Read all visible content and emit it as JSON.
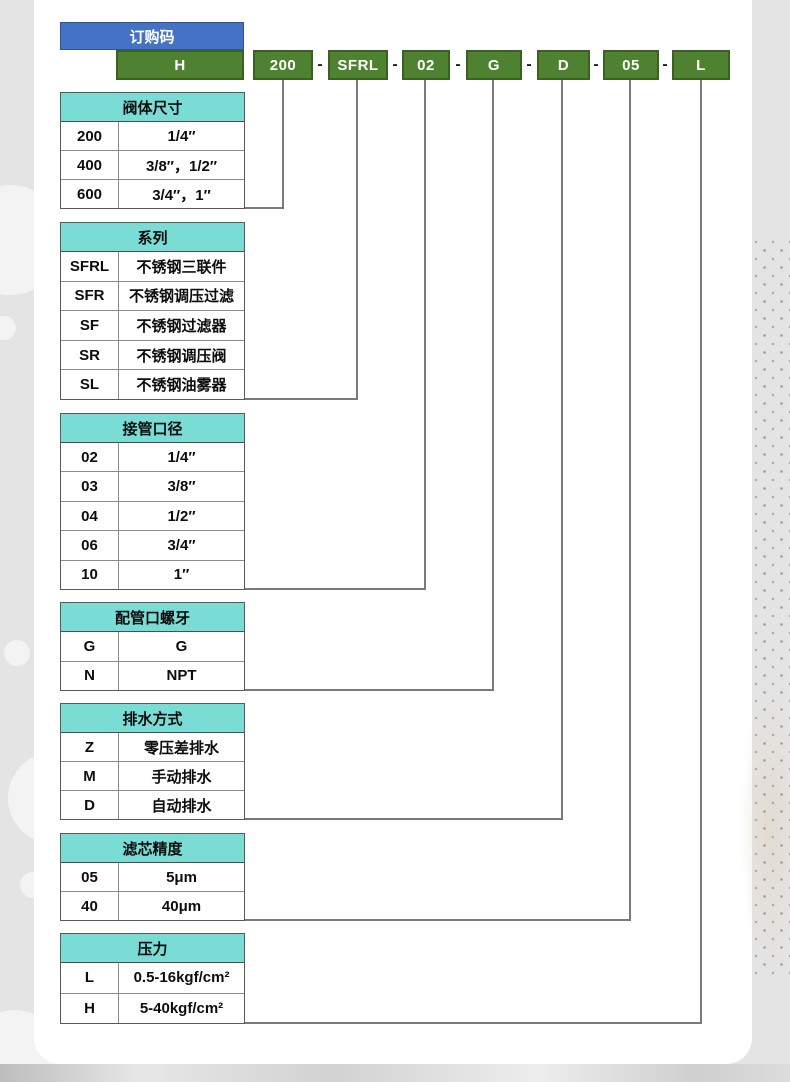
{
  "title_box": {
    "label": "订购码"
  },
  "code": {
    "prefix": "H",
    "separator": "-",
    "segments": [
      {
        "code": "200"
      },
      {
        "code": "SFRL"
      },
      {
        "code": "02"
      },
      {
        "code": "G"
      },
      {
        "code": "D"
      },
      {
        "code": "05"
      },
      {
        "code": "L"
      }
    ]
  },
  "tables": [
    {
      "title": "阀体尺寸",
      "rows": [
        [
          "200",
          "1/4″"
        ],
        [
          "400",
          "3/8″，1/2″"
        ],
        [
          "600",
          "3/4″，1″"
        ]
      ]
    },
    {
      "title": "系列",
      "rows": [
        [
          "SFRL",
          "不锈钢三联件"
        ],
        [
          "SFR",
          "不锈钢调压过滤"
        ],
        [
          "SF",
          "不锈钢过滤器"
        ],
        [
          "SR",
          "不锈钢调压阀"
        ],
        [
          "SL",
          "不锈钢油雾器"
        ]
      ]
    },
    {
      "title": "接管口径",
      "rows": [
        [
          "02",
          "1/4″"
        ],
        [
          "03",
          "3/8″"
        ],
        [
          "04",
          "1/2″"
        ],
        [
          "06",
          "3/4″"
        ],
        [
          "10",
          "1″"
        ]
      ]
    },
    {
      "title": "配管口螺牙",
      "rows": [
        [
          "G",
          "G"
        ],
        [
          "N",
          "NPT"
        ]
      ]
    },
    {
      "title": "排水方式",
      "rows": [
        [
          "Z",
          "零压差排水"
        ],
        [
          "M",
          "手动排水"
        ],
        [
          "D",
          "自动排水"
        ]
      ]
    },
    {
      "title": "滤芯精度",
      "rows": [
        [
          "05",
          "5μm"
        ],
        [
          "40",
          "40μm"
        ]
      ]
    },
    {
      "title": "压力",
      "rows": [
        [
          "L",
          "0.5-16kgf/cm²"
        ],
        [
          "H",
          "5-40kgf/cm²"
        ]
      ]
    }
  ],
  "colors": {
    "title_blue": "#4472c4",
    "code_green": "#4f8230",
    "table_header_teal": "#79ddd5",
    "connector_gray": "#7a7a7a"
  }
}
